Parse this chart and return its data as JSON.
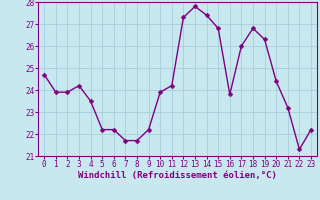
{
  "x": [
    0,
    1,
    2,
    3,
    4,
    5,
    6,
    7,
    8,
    9,
    10,
    11,
    12,
    13,
    14,
    15,
    16,
    17,
    18,
    19,
    20,
    21,
    22,
    23
  ],
  "y": [
    24.7,
    23.9,
    23.9,
    24.2,
    23.5,
    22.2,
    22.2,
    21.7,
    21.7,
    22.2,
    23.9,
    24.2,
    27.3,
    27.8,
    27.4,
    26.8,
    23.8,
    26.0,
    26.8,
    26.3,
    24.4,
    23.2,
    21.3,
    22.2
  ],
  "line_color": "#800080",
  "marker_color": "#800080",
  "bg_color": "#c8e8f0",
  "plot_bg_color": "#c8e8f0",
  "grid_color": "#a0c8d8",
  "xlabel": "Windchill (Refroidissement éolien,°C)",
  "xlabel_color": "#800080",
  "tick_color": "#800080",
  "spine_color": "#800080",
  "ylim": [
    21,
    28
  ],
  "xlim": [
    -0.5,
    23.5
  ],
  "yticks": [
    21,
    22,
    23,
    24,
    25,
    26,
    27,
    28
  ],
  "xticks": [
    0,
    1,
    2,
    3,
    4,
    5,
    6,
    7,
    8,
    9,
    10,
    11,
    12,
    13,
    14,
    15,
    16,
    17,
    18,
    19,
    20,
    21,
    22,
    23
  ],
  "marker_size": 2.5,
  "line_width": 1.0,
  "tick_fontsize": 5.5,
  "xlabel_fontsize": 6.5
}
